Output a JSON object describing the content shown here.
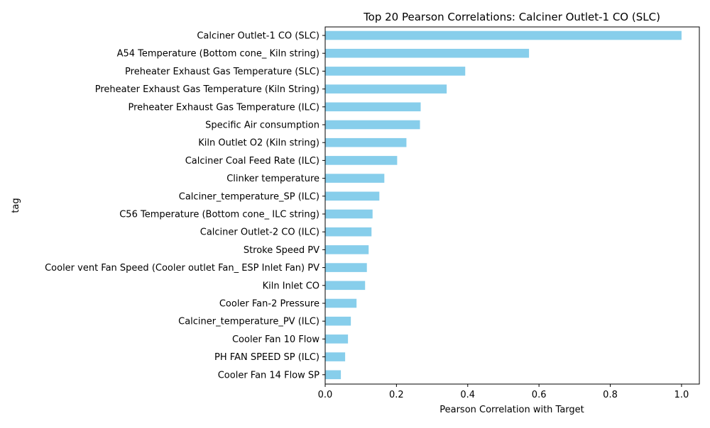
{
  "chart_data": {
    "type": "bar",
    "orientation": "horizontal",
    "title": "Top 20 Pearson Correlations: Calciner Outlet-1 CO (SLC)",
    "xlabel": "Pearson Correlation with Target",
    "ylabel": "tag",
    "xlim": [
      0.0,
      1.05
    ],
    "xticks": [
      0.0,
      0.2,
      0.4,
      0.6,
      0.8,
      1.0
    ],
    "xtick_labels": [
      "0.0",
      "0.2",
      "0.4",
      "0.6",
      "0.8",
      "1.0"
    ],
    "grid": false,
    "legend": "none",
    "bar_color": "#87CEEB",
    "categories": [
      "Calciner Outlet-1 CO (SLC)",
      "A54 Temperature (Bottom cone_ Kiln string)",
      "Preheater Exhaust Gas Temperature (SLC)",
      "Preheater Exhaust Gas Temperature  (Kiln String)",
      "Preheater Exhaust Gas Temperature (ILC)",
      "Specific Air consumption",
      "Kiln Outlet O2 (Kiln string)",
      "Calciner Coal Feed Rate (ILC)",
      "Clinker temperature",
      "Calciner_temperature_SP (ILC)",
      "C56 Temperature (Bottom cone_ ILC string)",
      "Calciner Outlet-2 CO (ILC)",
      "Stroke Speed PV",
      "Cooler vent Fan Speed (Cooler outlet Fan_ ESP Inlet Fan) PV",
      "Kiln Inlet CO",
      "Cooler Fan-2 Pressure",
      "Calciner_temperature_PV (ILC)",
      "Cooler Fan 10 Flow",
      "PH FAN SPEED SP (ILC)",
      "Cooler Fan 14 Flow SP"
    ],
    "values": [
      1.0,
      0.572,
      0.393,
      0.341,
      0.268,
      0.266,
      0.228,
      0.202,
      0.166,
      0.152,
      0.133,
      0.13,
      0.122,
      0.117,
      0.112,
      0.088,
      0.072,
      0.064,
      0.056,
      0.044
    ]
  }
}
